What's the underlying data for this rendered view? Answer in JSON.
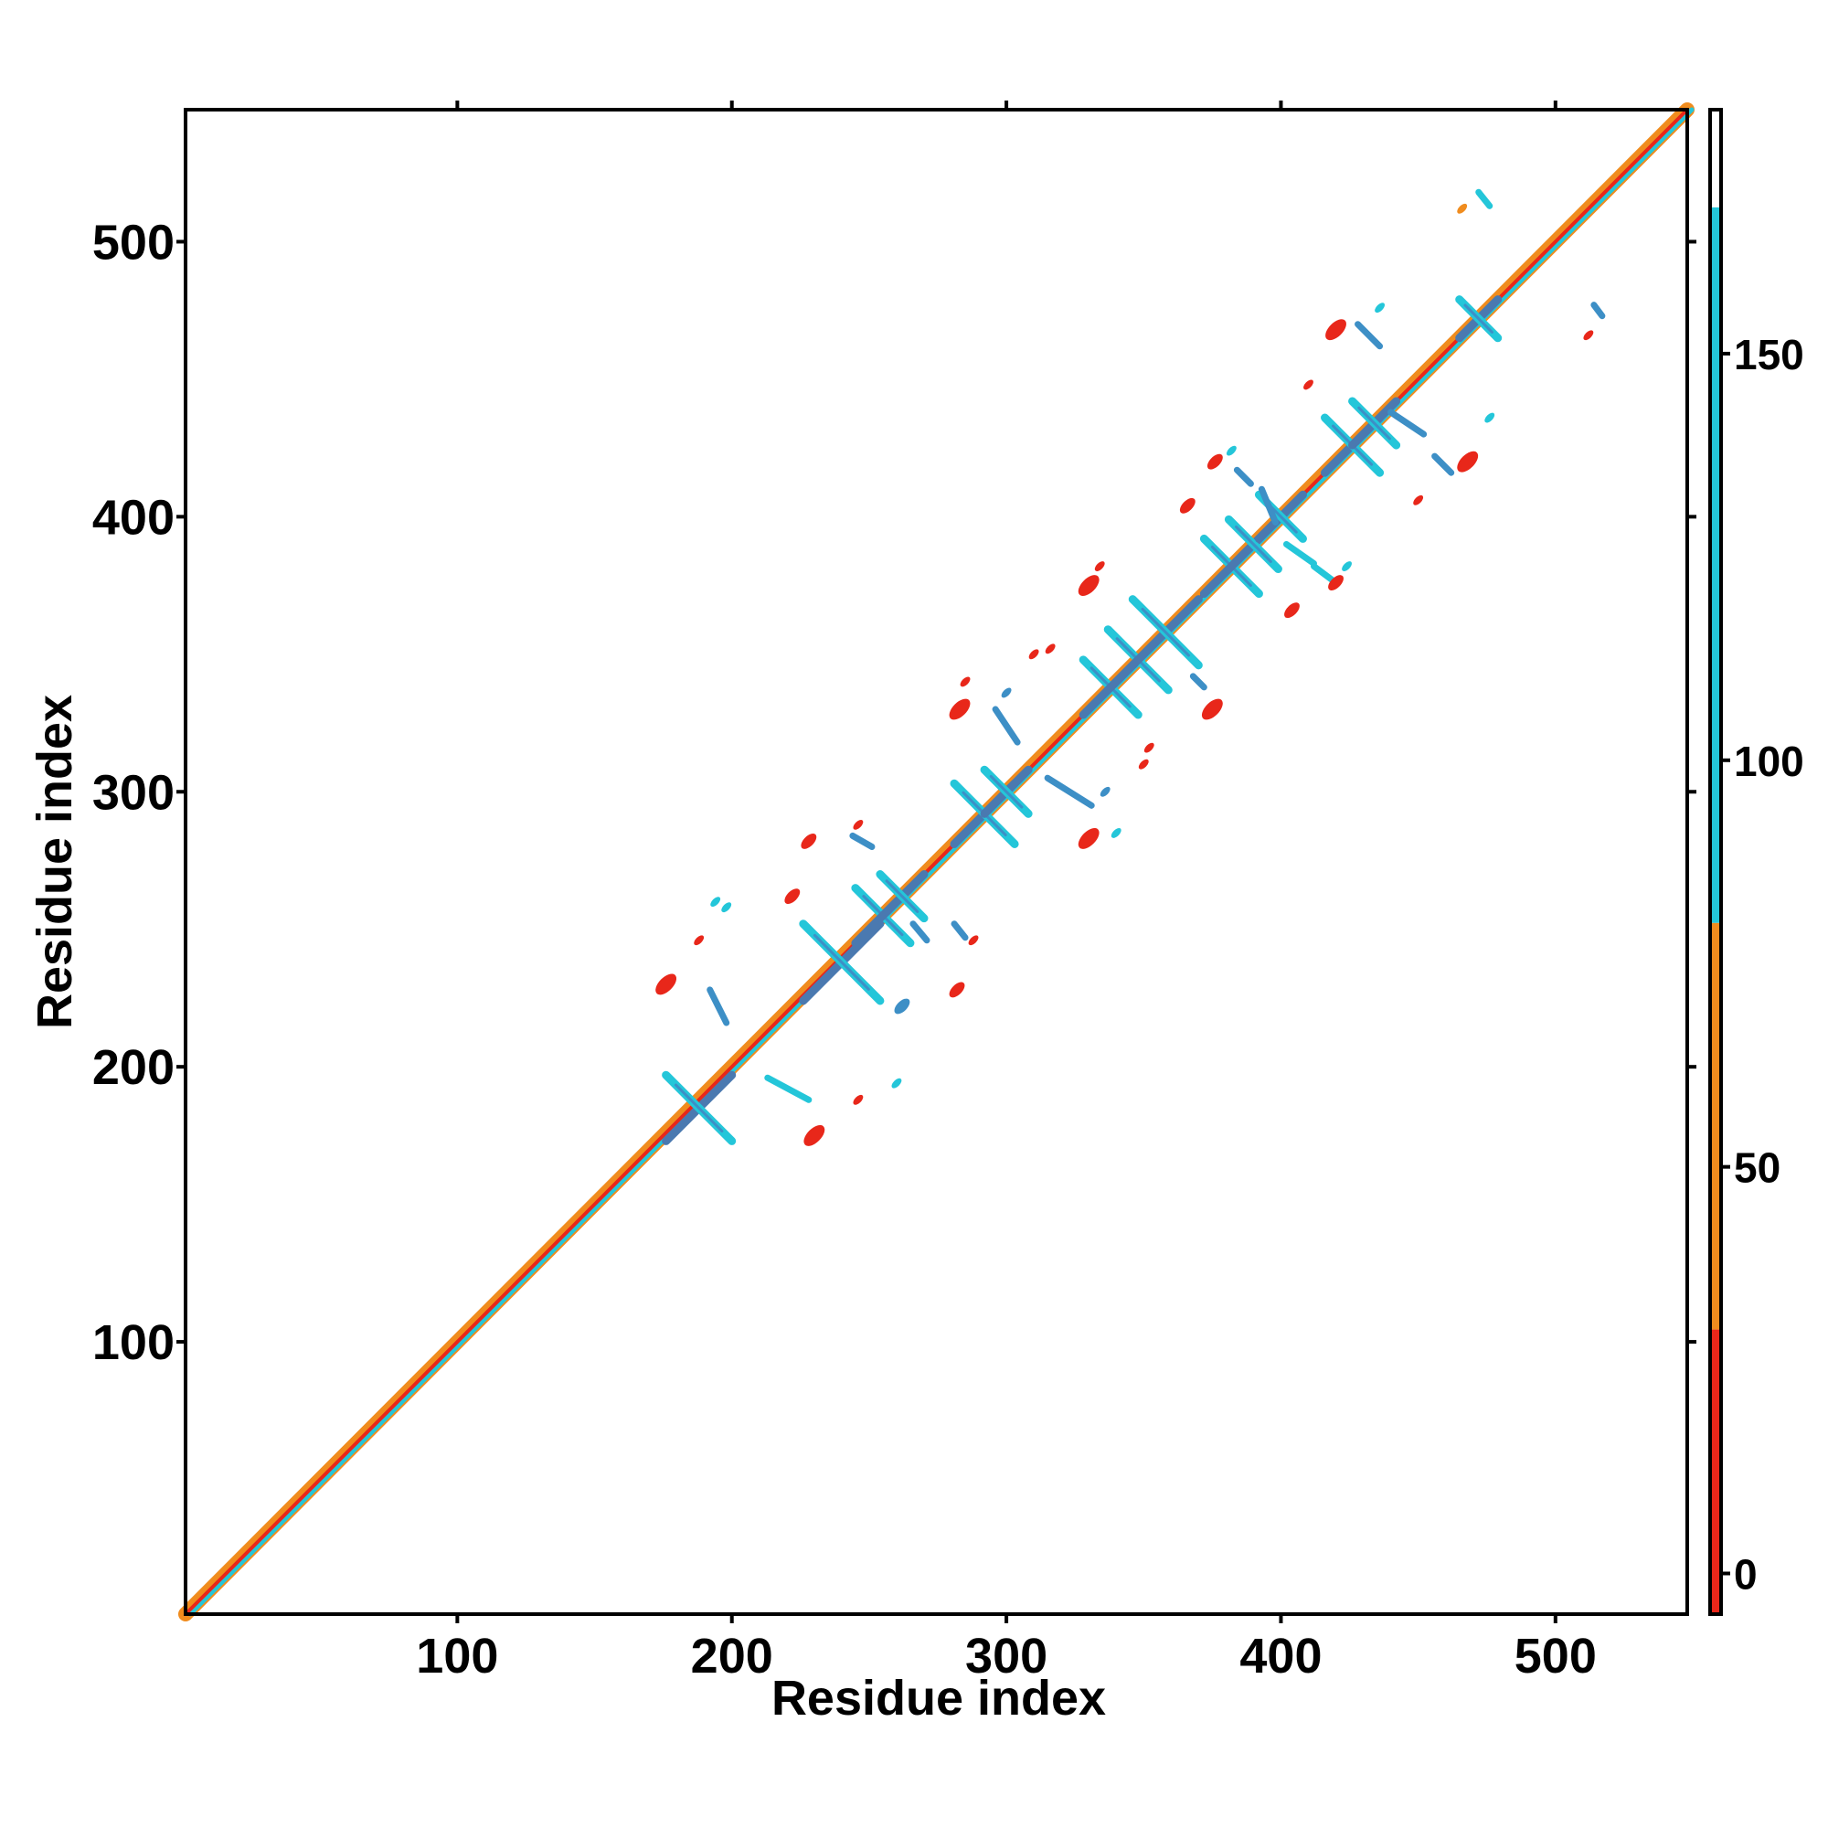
{
  "chart_data": {
    "type": "heatmap",
    "title": "",
    "xlabel": "Residue index",
    "ylabel": "Residue index",
    "xlim": [
      1,
      548
    ],
    "ylim": [
      1,
      548
    ],
    "x_ticks": [
      "100",
      "200",
      "300",
      "400",
      "500"
    ],
    "y_ticks": [
      "100",
      "200",
      "300",
      "400",
      "500"
    ],
    "x_tick_values": [
      100,
      200,
      300,
      400,
      500
    ],
    "y_tick_values": [
      100,
      200,
      300,
      400,
      500
    ],
    "grid": false,
    "colorbar": {
      "range": [
        -5,
        180
      ],
      "ticks": [
        "0",
        "50",
        "100",
        "150"
      ],
      "tick_values": [
        0,
        50,
        100,
        150
      ],
      "bands": [
        {
          "from": -5,
          "to": 30,
          "color": "#e8271a"
        },
        {
          "from": 30,
          "to": 80,
          "color": "#f08c1e"
        },
        {
          "from": 80,
          "to": 168,
          "color": "#24c6d9"
        },
        {
          "from": 168,
          "to": 180,
          "color": "#ffffff"
        }
      ]
    },
    "colors": {
      "red": "#e8271a",
      "orange": "#f08c1e",
      "cyan": "#24c6d9",
      "blue": "#3d8fc6",
      "steel": "#4a79b0"
    },
    "diagonal": {
      "from": 1,
      "to": 548
    },
    "crosses": [
      {
        "x": 188,
        "y": 185,
        "half": 12
      },
      {
        "x": 240,
        "y": 238,
        "half": 14
      },
      {
        "x": 255,
        "y": 255,
        "half": 10
      },
      {
        "x": 262,
        "y": 262,
        "half": 8
      },
      {
        "x": 292,
        "y": 292,
        "half": 11
      },
      {
        "x": 300,
        "y": 300,
        "half": 8
      },
      {
        "x": 338,
        "y": 338,
        "half": 10
      },
      {
        "x": 348,
        "y": 348,
        "half": 11
      },
      {
        "x": 358,
        "y": 358,
        "half": 12
      },
      {
        "x": 382,
        "y": 382,
        "half": 10
      },
      {
        "x": 390,
        "y": 390,
        "half": 9
      },
      {
        "x": 400,
        "y": 400,
        "half": 8
      },
      {
        "x": 426,
        "y": 426,
        "half": 10
      },
      {
        "x": 434,
        "y": 434,
        "half": 8
      },
      {
        "x": 472,
        "y": 472,
        "half": 7
      }
    ],
    "segments": [
      {
        "x1": 192,
        "y1": 228,
        "x2": 198,
        "y2": 216,
        "c": "blue"
      },
      {
        "x1": 213,
        "y1": 196,
        "x2": 228,
        "y2": 188,
        "c": "cyan"
      },
      {
        "x1": 244,
        "y1": 284,
        "x2": 251,
        "y2": 280,
        "c": "blue"
      },
      {
        "x1": 266,
        "y1": 252,
        "x2": 271,
        "y2": 246,
        "c": "blue"
      },
      {
        "x1": 281,
        "y1": 252,
        "x2": 285,
        "y2": 247,
        "c": "blue"
      },
      {
        "x1": 296,
        "y1": 330,
        "x2": 304,
        "y2": 318,
        "c": "blue"
      },
      {
        "x1": 315,
        "y1": 305,
        "x2": 331,
        "y2": 295,
        "c": "blue"
      },
      {
        "x1": 368,
        "y1": 342,
        "x2": 372,
        "y2": 338,
        "c": "blue"
      },
      {
        "x1": 384,
        "y1": 417,
        "x2": 389,
        "y2": 412,
        "c": "blue"
      },
      {
        "x1": 393,
        "y1": 410,
        "x2": 398,
        "y2": 398,
        "c": "blue"
      },
      {
        "x1": 402,
        "y1": 390,
        "x2": 412,
        "y2": 383,
        "c": "cyan"
      },
      {
        "x1": 412,
        "y1": 382,
        "x2": 420,
        "y2": 376,
        "c": "cyan"
      },
      {
        "x1": 440,
        "y1": 438,
        "x2": 452,
        "y2": 430,
        "c": "blue"
      },
      {
        "x1": 428,
        "y1": 470,
        "x2": 436,
        "y2": 462,
        "c": "blue"
      },
      {
        "x1": 456,
        "y1": 422,
        "x2": 462,
        "y2": 416,
        "c": "blue"
      },
      {
        "x1": 472,
        "y1": 518,
        "x2": 476,
        "y2": 513,
        "c": "cyan"
      },
      {
        "x1": 514,
        "y1": 477,
        "x2": 517,
        "y2": 473,
        "c": "blue"
      }
    ],
    "spots": [
      {
        "x": 176,
        "y": 230,
        "c": "red",
        "s": 3
      },
      {
        "x": 230,
        "y": 175,
        "c": "red",
        "s": 3
      },
      {
        "x": 198,
        "y": 258,
        "c": "cyan",
        "s": 1
      },
      {
        "x": 228,
        "y": 282,
        "c": "red",
        "s": 2
      },
      {
        "x": 282,
        "y": 228,
        "c": "red",
        "s": 2
      },
      {
        "x": 222,
        "y": 262,
        "c": "red",
        "s": 2
      },
      {
        "x": 262,
        "y": 222,
        "c": "blue",
        "s": 2
      },
      {
        "x": 283,
        "y": 330,
        "c": "red",
        "s": 3
      },
      {
        "x": 330,
        "y": 283,
        "c": "red",
        "s": 3
      },
      {
        "x": 285,
        "y": 340,
        "c": "red",
        "s": 1
      },
      {
        "x": 340,
        "y": 285,
        "c": "cyan",
        "s": 1
      },
      {
        "x": 330,
        "y": 375,
        "c": "red",
        "s": 3
      },
      {
        "x": 375,
        "y": 330,
        "c": "red",
        "s": 3
      },
      {
        "x": 334,
        "y": 382,
        "c": "red",
        "s": 1
      },
      {
        "x": 366,
        "y": 404,
        "c": "red",
        "s": 2
      },
      {
        "x": 404,
        "y": 366,
        "c": "red",
        "s": 2
      },
      {
        "x": 376,
        "y": 420,
        "c": "red",
        "s": 2
      },
      {
        "x": 420,
        "y": 376,
        "c": "red",
        "s": 2
      },
      {
        "x": 410,
        "y": 448,
        "c": "red",
        "s": 1
      },
      {
        "x": 420,
        "y": 468,
        "c": "red",
        "s": 3
      },
      {
        "x": 468,
        "y": 420,
        "c": "red",
        "s": 3
      },
      {
        "x": 450,
        "y": 406,
        "c": "red",
        "s": 1
      },
      {
        "x": 466,
        "y": 512,
        "c": "orange",
        "s": 1
      },
      {
        "x": 512,
        "y": 466,
        "c": "red",
        "s": 1
      },
      {
        "x": 352,
        "y": 316,
        "c": "red",
        "s": 1
      },
      {
        "x": 316,
        "y": 352,
        "c": "red",
        "s": 1
      },
      {
        "x": 260,
        "y": 194,
        "c": "cyan",
        "s": 1
      },
      {
        "x": 194,
        "y": 260,
        "c": "cyan",
        "s": 1
      },
      {
        "x": 246,
        "y": 188,
        "c": "red",
        "s": 1
      },
      {
        "x": 188,
        "y": 246,
        "c": "red",
        "s": 1
      },
      {
        "x": 288,
        "y": 246,
        "c": "red",
        "s": 1
      },
      {
        "x": 246,
        "y": 288,
        "c": "red",
        "s": 1
      },
      {
        "x": 300,
        "y": 336,
        "c": "blue",
        "s": 1
      },
      {
        "x": 336,
        "y": 300,
        "c": "blue",
        "s": 1
      },
      {
        "x": 350,
        "y": 310,
        "c": "red",
        "s": 1
      },
      {
        "x": 424,
        "y": 382,
        "c": "cyan",
        "s": 1
      },
      {
        "x": 382,
        "y": 424,
        "c": "cyan",
        "s": 1
      },
      {
        "x": 436,
        "y": 476,
        "c": "cyan",
        "s": 1
      },
      {
        "x": 476,
        "y": 436,
        "c": "cyan",
        "s": 1
      },
      {
        "x": 310,
        "y": 350,
        "c": "red",
        "s": 1
      }
    ]
  }
}
